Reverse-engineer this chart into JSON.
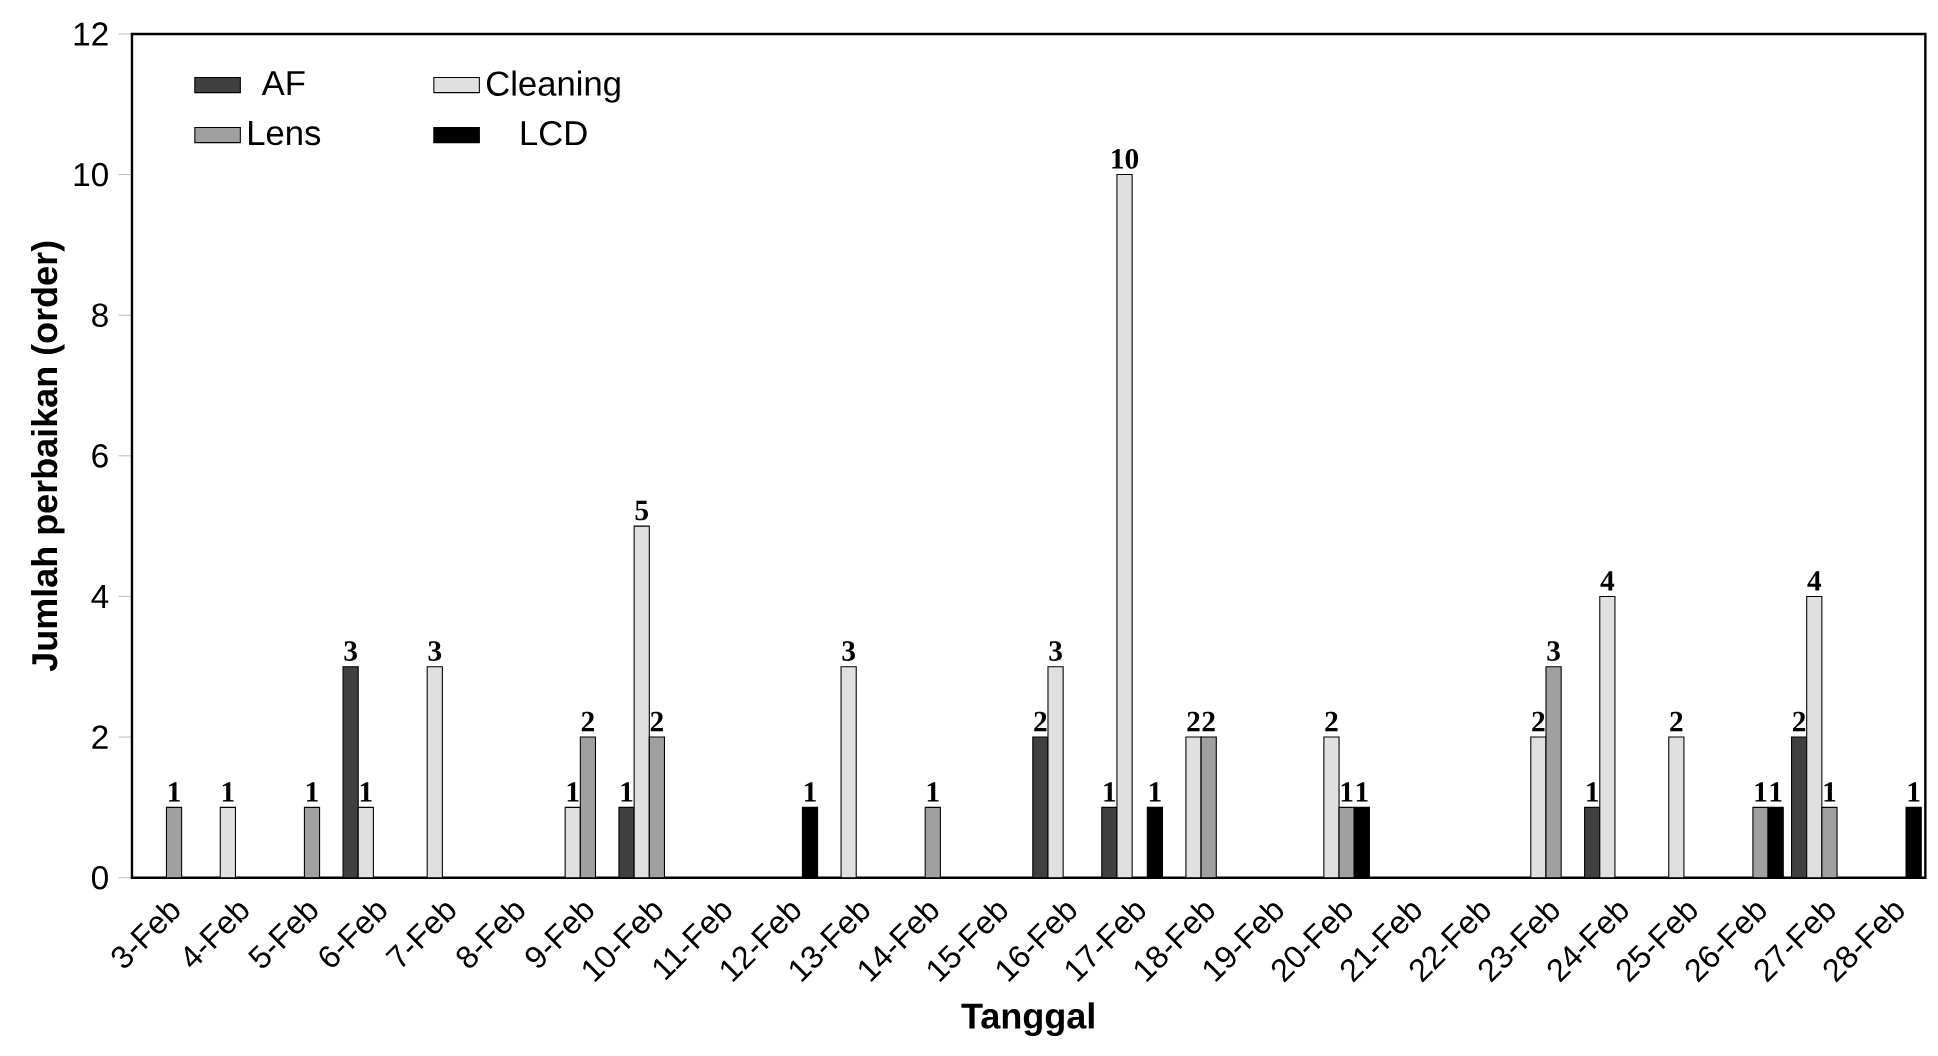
{
  "chart_data": {
    "type": "bar",
    "xlabel": "Tanggal",
    "ylabel": "Jumlah perbaikan (order)",
    "categories": [
      "3-Feb",
      "4-Feb",
      "5-Feb",
      "6-Feb",
      "7-Feb",
      "8-Feb",
      "9-Feb",
      "10-Feb",
      "11-Feb",
      "12-Feb",
      "13-Feb",
      "14-Feb",
      "15-Feb",
      "16-Feb",
      "17-Feb",
      "18-Feb",
      "19-Feb",
      "20-Feb",
      "21-Feb",
      "22-Feb",
      "23-Feb",
      "24-Feb",
      "25-Feb",
      "26-Feb",
      "27-Feb",
      "28-Feb"
    ],
    "series": [
      {
        "name": "AF",
        "color": "#404040",
        "values": [
          null,
          null,
          null,
          3,
          null,
          null,
          null,
          1,
          null,
          null,
          null,
          null,
          null,
          2,
          1,
          null,
          null,
          null,
          null,
          null,
          null,
          1,
          null,
          null,
          2,
          null
        ]
      },
      {
        "name": "Cleaning",
        "color": "#e0e0e0",
        "values": [
          null,
          1,
          null,
          1,
          3,
          null,
          1,
          5,
          null,
          null,
          3,
          null,
          null,
          3,
          10,
          2,
          null,
          2,
          null,
          null,
          2,
          4,
          2,
          null,
          4,
          null
        ]
      },
      {
        "name": "Lens",
        "color": "#a0a0a0",
        "values": [
          1,
          null,
          1,
          null,
          null,
          null,
          2,
          2,
          null,
          null,
          null,
          1,
          null,
          null,
          null,
          2,
          null,
          1,
          null,
          null,
          3,
          null,
          null,
          1,
          1,
          null
        ]
      },
      {
        "name": "LCD",
        "color": "#000000",
        "values": [
          null,
          null,
          null,
          null,
          null,
          null,
          null,
          null,
          null,
          1,
          null,
          null,
          null,
          null,
          1,
          null,
          null,
          1,
          null,
          null,
          null,
          null,
          null,
          1,
          null,
          1
        ]
      }
    ],
    "ylim": [
      0,
      12
    ],
    "yticks": [
      0,
      2,
      4,
      6,
      8,
      10,
      12
    ],
    "legend": "top left",
    "data_labels": true
  }
}
